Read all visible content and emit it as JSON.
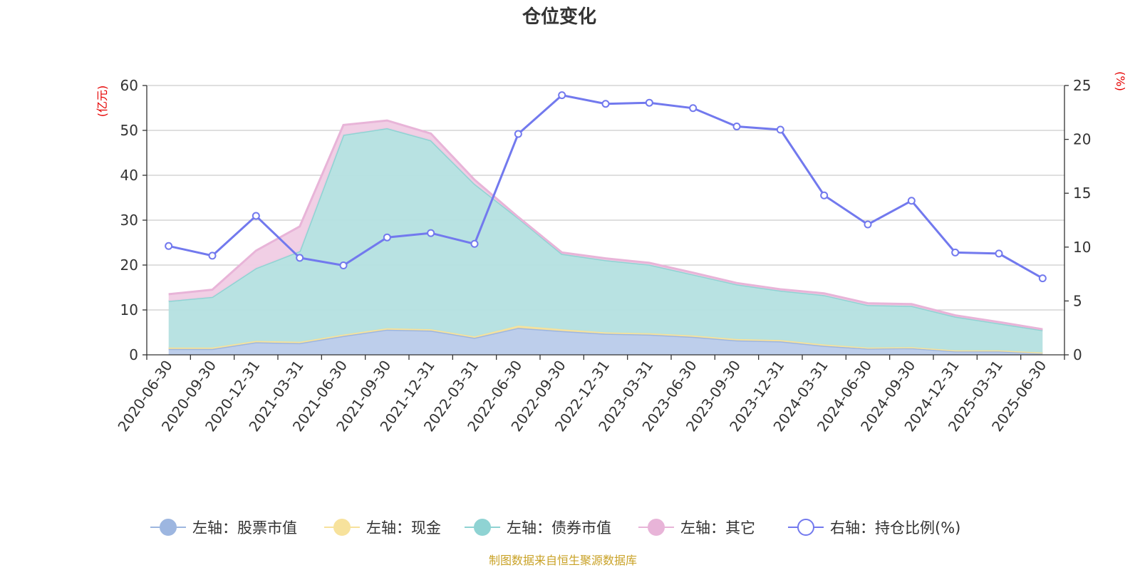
{
  "chart_data": {
    "type": "area",
    "title": "仓位变化",
    "left_unit": "(亿元)",
    "right_unit": "(%)",
    "categories": [
      "2020-06-30",
      "2020-09-30",
      "2020-12-31",
      "2021-03-31",
      "2021-06-30",
      "2021-09-30",
      "2021-12-31",
      "2022-03-31",
      "2022-06-30",
      "2022-09-30",
      "2022-12-31",
      "2023-03-31",
      "2023-06-30",
      "2023-09-30",
      "2023-12-31",
      "2024-03-31",
      "2024-06-30",
      "2024-09-30",
      "2024-12-31",
      "2025-03-31",
      "2025-06-30"
    ],
    "left_ylim": [
      0,
      60
    ],
    "left_ticks": [
      "0",
      "10",
      "20",
      "30",
      "40",
      "50",
      "60"
    ],
    "right_ylim": [
      0,
      25
    ],
    "right_ticks": [
      "0",
      "5",
      "10",
      "15",
      "20",
      "25"
    ],
    "grid": true,
    "legend_position": "bottom",
    "stacked_series": [
      {
        "name": "左轴：股票市值",
        "color": "#9db6e0",
        "fill": "#b9cbea",
        "values": [
          1.3,
          1.3,
          2.8,
          2.6,
          4.2,
          5.6,
          5.4,
          3.8,
          6.0,
          5.3,
          4.7,
          4.5,
          4.0,
          3.2,
          3.0,
          2.0,
          1.4,
          1.5,
          0.8,
          0.8,
          0.4
        ]
      },
      {
        "name": "左轴：现金",
        "color": "#f7e29c",
        "fill": "#f7e29c",
        "values": [
          0.3,
          0.3,
          0.3,
          0.3,
          0.3,
          0.3,
          0.3,
          0.3,
          0.5,
          0.4,
          0.3,
          0.3,
          0.3,
          0.3,
          0.3,
          0.3,
          0.2,
          0.2,
          0.2,
          0.2,
          0.1
        ]
      },
      {
        "name": "左轴：债券市值",
        "color": "#8fd3d3",
        "fill": "#b4e0e0",
        "values": [
          10.4,
          11.3,
          16.2,
          20.2,
          44.5,
          44.6,
          42.1,
          34.0,
          24.0,
          16.8,
          16.1,
          15.3,
          13.6,
          12.2,
          11.0,
          11.0,
          9.5,
          9.2,
          7.5,
          6.0,
          5.0
        ]
      },
      {
        "name": "左轴：其它",
        "color": "#e8b4d8",
        "fill": "#f0cce4",
        "values": [
          1.5,
          1.6,
          3.9,
          5.5,
          2.2,
          1.7,
          1.5,
          0.9,
          0.2,
          0.3,
          0.4,
          0.4,
          0.4,
          0.3,
          0.3,
          0.4,
          0.4,
          0.4,
          0.3,
          0.3,
          0.2
        ]
      }
    ],
    "line_series": {
      "name": "右轴：持仓比例(%)",
      "color": "#7279ee",
      "values": [
        10.1,
        9.2,
        12.9,
        9.0,
        8.3,
        10.9,
        11.3,
        10.3,
        20.5,
        24.1,
        23.3,
        23.4,
        22.9,
        21.2,
        20.9,
        14.8,
        12.1,
        14.3,
        9.5,
        9.4,
        7.1
      ]
    }
  },
  "source_note": "制图数据来自恒生聚源数据库"
}
